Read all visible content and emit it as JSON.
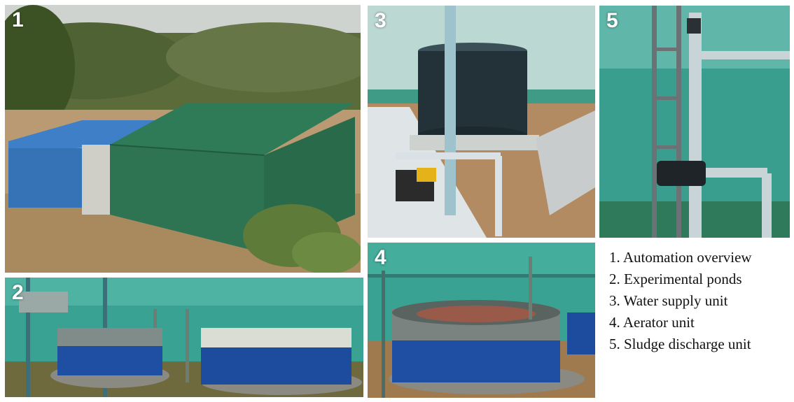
{
  "panels": [
    {
      "number": "1"
    },
    {
      "number": "2"
    },
    {
      "number": "3"
    },
    {
      "number": "4"
    },
    {
      "number": "5"
    }
  ],
  "legend": [
    "1. Automation overview",
    "2. Experimental ponds",
    "3. Water supply unit",
    "4. Aerator unit",
    "5. Sludge discharge unit"
  ],
  "colors": {
    "shade_net_green": "#2a6b4f",
    "pond_liner_blue": "#1f4fa3",
    "net_teal": "#3fa79a",
    "sky": "#d8dde0",
    "soil": "#b98a5c"
  }
}
